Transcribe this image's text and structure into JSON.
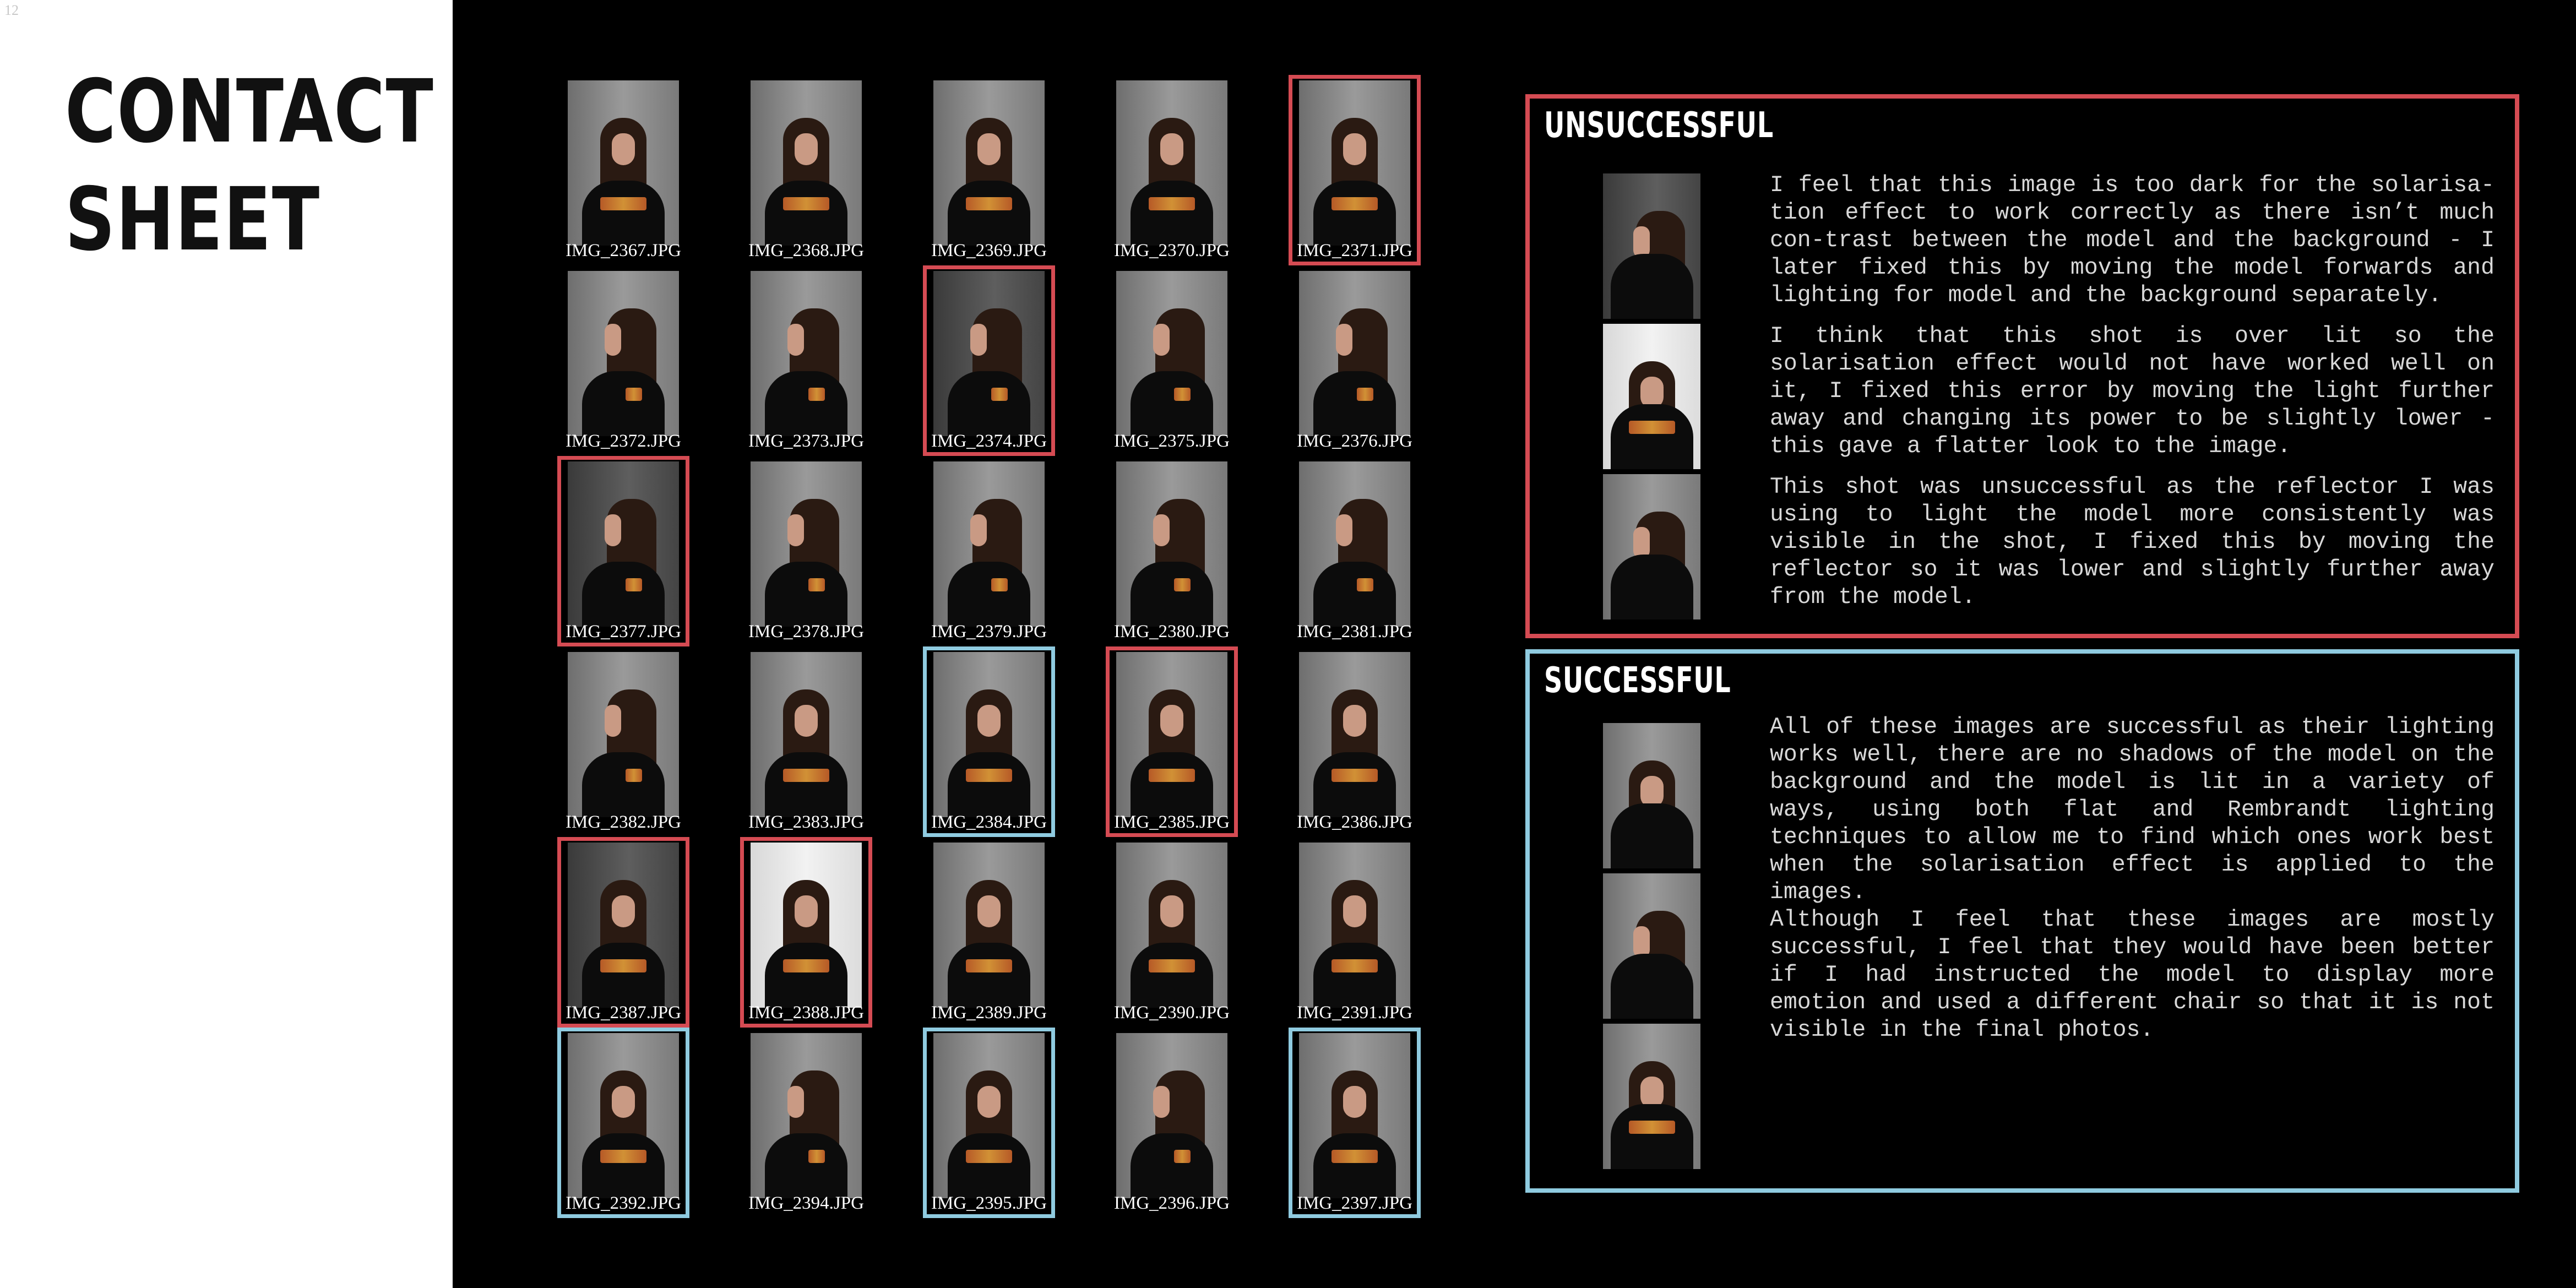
{
  "page_number": "12",
  "title": [
    "CONTACT",
    "SHEET"
  ],
  "colors": {
    "unsuccessful": "#d54b53",
    "successful": "#8fcbe0"
  },
  "contact_sheet": [
    {
      "label": "IMG_2367.JPG",
      "mark": "none"
    },
    {
      "label": "IMG_2368.JPG",
      "mark": "none"
    },
    {
      "label": "IMG_2369.JPG",
      "mark": "none"
    },
    {
      "label": "IMG_2370.JPG",
      "mark": "none"
    },
    {
      "label": "IMG_2371.JPG",
      "mark": "red"
    },
    {
      "label": "IMG_2372.JPG",
      "mark": "none"
    },
    {
      "label": "IMG_2373.JPG",
      "mark": "none"
    },
    {
      "label": "IMG_2374.JPG",
      "mark": "red"
    },
    {
      "label": "IMG_2375.JPG",
      "mark": "none"
    },
    {
      "label": "IMG_2376.JPG",
      "mark": "none"
    },
    {
      "label": "IMG_2377.JPG",
      "mark": "red"
    },
    {
      "label": "IMG_2378.JPG",
      "mark": "none"
    },
    {
      "label": "IMG_2379.JPG",
      "mark": "none"
    },
    {
      "label": "IMG_2380.JPG",
      "mark": "none"
    },
    {
      "label": "IMG_2381.JPG",
      "mark": "none"
    },
    {
      "label": "IMG_2382.JPG",
      "mark": "none"
    },
    {
      "label": "IMG_2383.JPG",
      "mark": "none"
    },
    {
      "label": "IMG_2384.JPG",
      "mark": "blue"
    },
    {
      "label": "IMG_2385.JPG",
      "mark": "red"
    },
    {
      "label": "IMG_2386.JPG",
      "mark": "none"
    },
    {
      "label": "IMG_2387.JPG",
      "mark": "red"
    },
    {
      "label": "IMG_2388.JPG",
      "mark": "red"
    },
    {
      "label": "IMG_2389.JPG",
      "mark": "none"
    },
    {
      "label": "IMG_2390.JPG",
      "mark": "none"
    },
    {
      "label": "IMG_2391.JPG",
      "mark": "none"
    },
    {
      "label": "IMG_2392.JPG",
      "mark": "blue"
    },
    {
      "label": "IMG_2394.JPG",
      "mark": "none"
    },
    {
      "label": "IMG_2395.JPG",
      "mark": "blue"
    },
    {
      "label": "IMG_2396.JPG",
      "mark": "none"
    },
    {
      "label": "IMG_2397.JPG",
      "mark": "blue"
    }
  ],
  "unsuccessful": {
    "heading": "UNSUCCESSFUL",
    "paragraphs": [
      "I feel that this image is too dark for the solarisa-tion effect to work correctly as there isn’t much con-trast between the model and the background - I later fixed this by moving the model forwards and lighting for model and the background separately.",
      "I think that this shot is over lit so the solarisation effect would not have worked well on it, I fixed this error by moving the light further away and changing its power to be slightly lower - this gave a flatter look to the image.",
      "This shot was unsuccessful as the reflector I was using to light the model more consistently was visible in the shot, I fixed this by moving the reflector so it was lower and slightly further away from the model."
    ]
  },
  "successful": {
    "heading": "SUCCESSFUL",
    "paragraphs": [
      "All of these images are successful as their lighting works well, there are no shadows of the model on the background and the model is lit in a variety of ways, using both flat and Rembrandt lighting techniques to allow me to find which ones work best when the solarisation effect is applied to the images.",
      "Although I feel that these images are mostly successful, I feel that they would have been better if I had instructed the model to display more emotion and used a different chair so that it is not visible in the final photos."
    ]
  }
}
